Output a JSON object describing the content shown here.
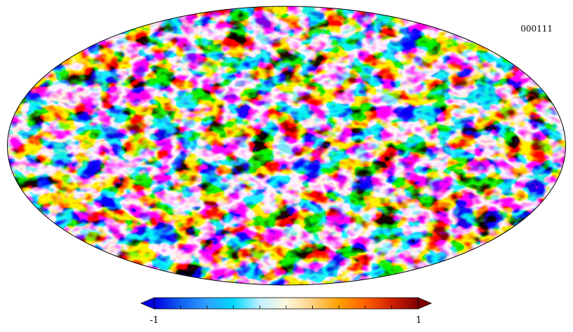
{
  "map_label": "000111",
  "colorbar": {
    "min_label": "-1",
    "max_label": "1",
    "value_min": -1,
    "value_max": 1,
    "tick_count": 11,
    "colors": [
      "#0000e0",
      "#1060f0",
      "#30a0ff",
      "#00d8ff",
      "#c0f0ff",
      "#fff8e0",
      "#ffd080",
      "#ffa000",
      "#ff6000",
      "#d02000",
      "#800000"
    ]
  },
  "map": {
    "projection": "mollweide",
    "field_range": [
      -1,
      1
    ]
  }
}
